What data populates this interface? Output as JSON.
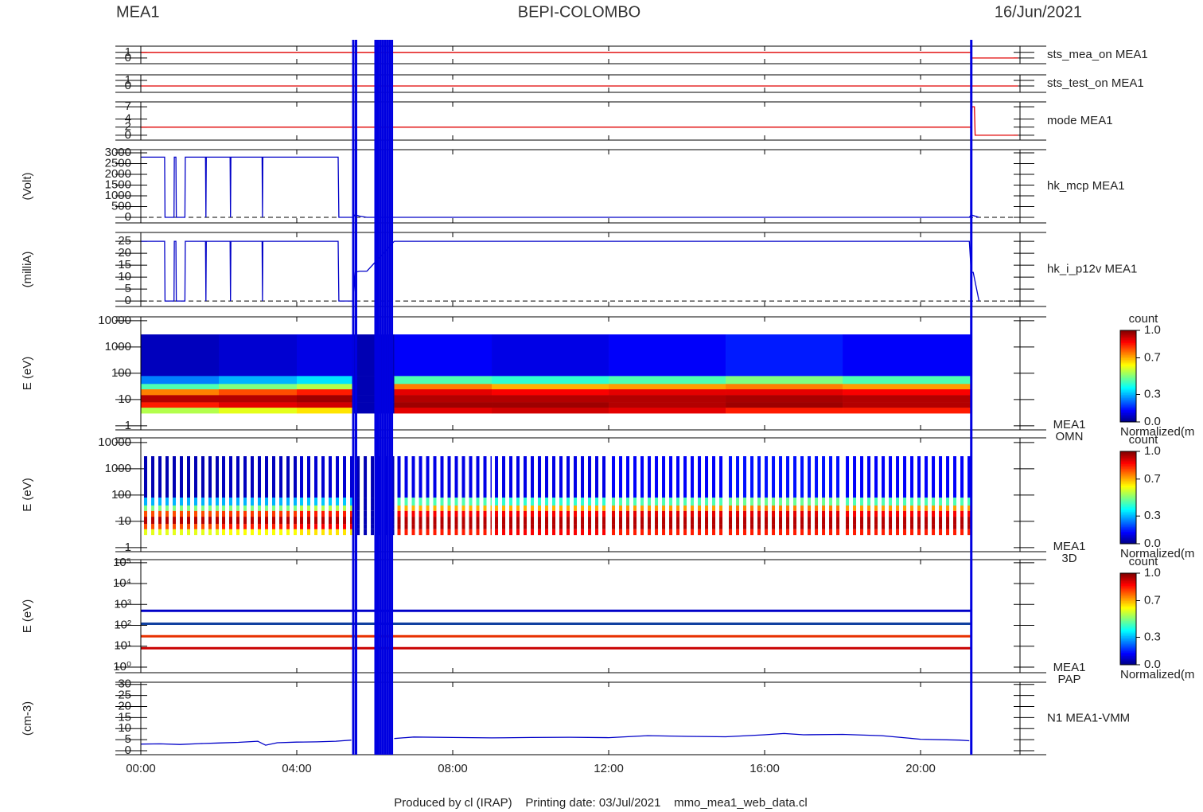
{
  "header": {
    "left": "MEA1",
    "center": "BEPI-COLOMBO",
    "right": "16/Jun/2021"
  },
  "footer": "Produced by cl (IRAP)    Printing date: 03/Jul/2021    mmo_mea1_web_data.cl",
  "time_axis": {
    "xlim": [
      0,
      22.55
    ],
    "xticks": [
      {
        "value": 0,
        "label": "00:00"
      },
      {
        "value": 4,
        "label": "04:00"
      },
      {
        "value": 8,
        "label": "08:00"
      },
      {
        "value": 12,
        "label": "12:00"
      },
      {
        "value": 16,
        "label": "16:00"
      },
      {
        "value": 20,
        "label": "20:00"
      }
    ]
  },
  "events": [
    5.45,
    5.52,
    6.02,
    6.08,
    6.14,
    6.2,
    6.26,
    6.32,
    6.38,
    6.44,
    21.3
  ],
  "event_color": "#0000e0",
  "chart_data": [
    {
      "type": "line",
      "label": "sts_mea_on MEA1",
      "color": "#e00000",
      "ylim": [
        -1,
        2.1
      ],
      "yticks": [
        0,
        1
      ],
      "x": [
        0,
        21.3,
        21.3,
        22.5
      ],
      "values": [
        1,
        1,
        0,
        0
      ]
    },
    {
      "type": "line",
      "label": "sts_test_on MEA1",
      "color": "#e00000",
      "ylim": [
        -1.15,
        2
      ],
      "yticks": [
        0,
        1
      ],
      "x": [
        0,
        22.5
      ],
      "values": [
        0,
        0
      ]
    },
    {
      "type": "line",
      "label": "mode MEA1",
      "color": "#e00000",
      "ylim": [
        -1.2,
        8.2
      ],
      "yticks": [
        0,
        2,
        4,
        7
      ],
      "x": [
        0,
        21.3,
        21.32,
        21.38,
        21.4,
        22.5
      ],
      "values": [
        2,
        2,
        7,
        7,
        0,
        0
      ]
    },
    {
      "type": "line",
      "label": "hk_mcp MEA1",
      "ylabel": "(Volt)",
      "color": "#0000c8",
      "zero_line": true,
      "ylim": [
        -260,
        3150
      ],
      "yticks": [
        0,
        500,
        1000,
        1500,
        2000,
        2500,
        3000
      ],
      "x": [
        0,
        0.61,
        0.62,
        0.85,
        0.86,
        0.9,
        0.91,
        1.13,
        1.14,
        1.66,
        1.67,
        1.68,
        2.29,
        2.3,
        2.31,
        3.11,
        3.12,
        3.13,
        5.06,
        5.08,
        5.45,
        5.5,
        5.6,
        5.8,
        6.5,
        21.25,
        21.3,
        21.35,
        21.5
      ],
      "values": [
        2800,
        2800,
        0,
        0,
        2800,
        2800,
        0,
        0,
        2800,
        2800,
        0,
        2800,
        2800,
        0,
        2800,
        2800,
        0,
        2800,
        2800,
        0,
        0,
        120,
        60,
        0,
        0,
        0,
        120,
        80,
        0
      ]
    },
    {
      "type": "line",
      "label": "hk_i_p12v MEA1",
      "ylabel": "(milliA)",
      "color": "#0000c8",
      "zero_line": true,
      "ylim": [
        -2.3,
        28.7
      ],
      "yticks": [
        0,
        5,
        10,
        15,
        20,
        25
      ],
      "x": [
        0,
        0.61,
        0.62,
        0.85,
        0.86,
        0.9,
        0.91,
        1.13,
        1.14,
        1.66,
        1.67,
        1.68,
        2.29,
        2.3,
        2.31,
        3.11,
        3.12,
        3.13,
        5.06,
        5.08,
        5.45,
        5.5,
        5.6,
        5.8,
        6.5,
        21.25,
        21.3,
        21.35,
        21.5
      ],
      "values": [
        25,
        25,
        0,
        0,
        25,
        25,
        0,
        0,
        25,
        25,
        0,
        25,
        25,
        0,
        25,
        25,
        0,
        25,
        25,
        0,
        0,
        12,
        12.5,
        12.5,
        25,
        25,
        12,
        12,
        0
      ]
    },
    {
      "type": "heatmap",
      "label": "MEA1",
      "sublabel": "OMN",
      "ylabel": "E (eV)",
      "log": true,
      "ylim": [
        0.7,
        14000
      ],
      "yticks": [
        1,
        10,
        100,
        1000,
        10000
      ],
      "x_bins": [
        0,
        2,
        4,
        5.45,
        6.5,
        9,
        12,
        15,
        18,
        21.3
      ],
      "y_bins": [
        3,
        5,
        8,
        15,
        25,
        40,
        80,
        3000
      ],
      "z": [
        [
          0.55,
          0.85,
          0.95,
          0.75,
          0.45,
          0.25,
          0.06
        ],
        [
          0.6,
          0.9,
          0.95,
          0.8,
          0.5,
          0.3,
          0.08
        ],
        [
          0.65,
          0.92,
          0.97,
          0.85,
          0.55,
          0.35,
          0.1
        ],
        [
          0.05,
          0.05,
          0.05,
          0.05,
          0.05,
          0.05,
          0.05
        ],
        [
          0.9,
          0.97,
          0.95,
          0.9,
          0.75,
          0.45,
          0.12
        ],
        [
          0.92,
          0.97,
          0.95,
          0.88,
          0.7,
          0.42,
          0.1
        ],
        [
          0.9,
          0.95,
          0.95,
          0.9,
          0.72,
          0.45,
          0.12
        ],
        [
          0.85,
          0.97,
          0.96,
          0.9,
          0.75,
          0.5,
          0.15
        ],
        [
          0.85,
          0.95,
          0.95,
          0.88,
          0.72,
          0.45,
          0.12
        ]
      ],
      "colorbar": {
        "title": "count",
        "ticks": [
          {
            "value": 0,
            "label": "0.0"
          },
          0.3,
          0.7,
          {
            "value": 1,
            "label": "1.0"
          }
        ],
        "label": "Normalized(m"
      }
    },
    {
      "type": "heatmap",
      "striped": true,
      "label": "MEA1",
      "sublabel": "3D",
      "ylabel": "E (eV)",
      "log": true,
      "ylim": [
        0.7,
        15000
      ],
      "yticks": [
        1,
        10,
        100,
        1000,
        10000
      ],
      "x_bins": [
        0,
        2,
        4,
        5.45,
        6.5,
        9,
        12,
        15,
        18,
        21.3
      ],
      "y_bins": [
        3,
        5,
        8,
        15,
        25,
        40,
        80,
        3000
      ],
      "z": [
        [
          0.6,
          0.8,
          0.95,
          0.8,
          0.5,
          0.3,
          0.05
        ],
        [
          0.62,
          0.85,
          0.95,
          0.82,
          0.5,
          0.3,
          0.06
        ],
        [
          0.65,
          0.88,
          0.95,
          0.85,
          0.55,
          0.32,
          0.08
        ],
        [
          0.05,
          0.05,
          0.05,
          0.05,
          0.05,
          0.05,
          0.05
        ],
        [
          0.85,
          0.95,
          0.95,
          0.88,
          0.7,
          0.45,
          0.1
        ],
        [
          0.88,
          0.95,
          0.95,
          0.88,
          0.7,
          0.42,
          0.1
        ],
        [
          0.85,
          0.95,
          0.95,
          0.9,
          0.72,
          0.45,
          0.12
        ],
        [
          0.85,
          0.95,
          0.95,
          0.9,
          0.75,
          0.48,
          0.14
        ],
        [
          0.85,
          0.95,
          0.95,
          0.88,
          0.72,
          0.45,
          0.12
        ]
      ],
      "colorbar": {
        "title": "count",
        "ticks": [
          {
            "value": 0,
            "label": "0.0"
          },
          0.3,
          0.7,
          {
            "value": 1,
            "label": "1.0"
          }
        ],
        "label": "Normalized(m"
      }
    },
    {
      "type": "levels",
      "label": "MEA1",
      "sublabel": "PAP",
      "ylabel": "E (eV)",
      "log": true,
      "ylim": [
        0.54,
        140000
      ],
      "yticks": [
        {
          "value": 1,
          "label": "10⁰"
        },
        {
          "value": 10,
          "label": "10¹"
        },
        {
          "value": 100,
          "label": "10²"
        },
        {
          "value": 1000,
          "label": "10³"
        },
        {
          "value": 10000,
          "label": "10⁴"
        },
        {
          "value": 100000,
          "label": "10⁵"
        }
      ],
      "x_range": [
        0,
        21.3
      ],
      "levels": [
        8,
        30,
        120,
        500
      ],
      "colors": [
        "#c80000",
        "#e83000",
        "#1040a0",
        "#0000c8"
      ],
      "colorbar": {
        "title": "count",
        "ticks": [
          {
            "value": 0,
            "label": "0.0"
          },
          0.3,
          0.7,
          {
            "value": 1,
            "label": "1.0"
          }
        ],
        "label": "Normalized(m"
      }
    },
    {
      "type": "line",
      "label": "N1 MEA1-VMM",
      "ylabel": "(cm-3)",
      "color": "#0000c8",
      "ylim": [
        -1.8,
        31
      ],
      "yticks": [
        0,
        5,
        10,
        15,
        20,
        25,
        30
      ],
      "x": [
        0,
        0.5,
        1,
        1.5,
        2,
        2.5,
        3,
        3.2,
        3.5,
        4,
        4.5,
        5,
        5.4,
        5.8,
        6.5,
        7,
        8,
        9,
        10,
        11,
        12,
        13,
        14,
        15,
        16,
        16.5,
        17,
        18,
        19,
        20,
        21,
        21.25
      ],
      "values": [
        3,
        3.1,
        2.8,
        3.2,
        3.5,
        3.8,
        4.3,
        2.5,
        3.6,
        3.9,
        4,
        4.3,
        4.8,
        null,
        5.5,
        6.2,
        6,
        5.8,
        6,
        6.1,
        5.9,
        6.8,
        6.5,
        6.3,
        7.2,
        7.8,
        7.2,
        7.4,
        6.8,
        5.2,
        4.8,
        4.5
      ]
    }
  ]
}
